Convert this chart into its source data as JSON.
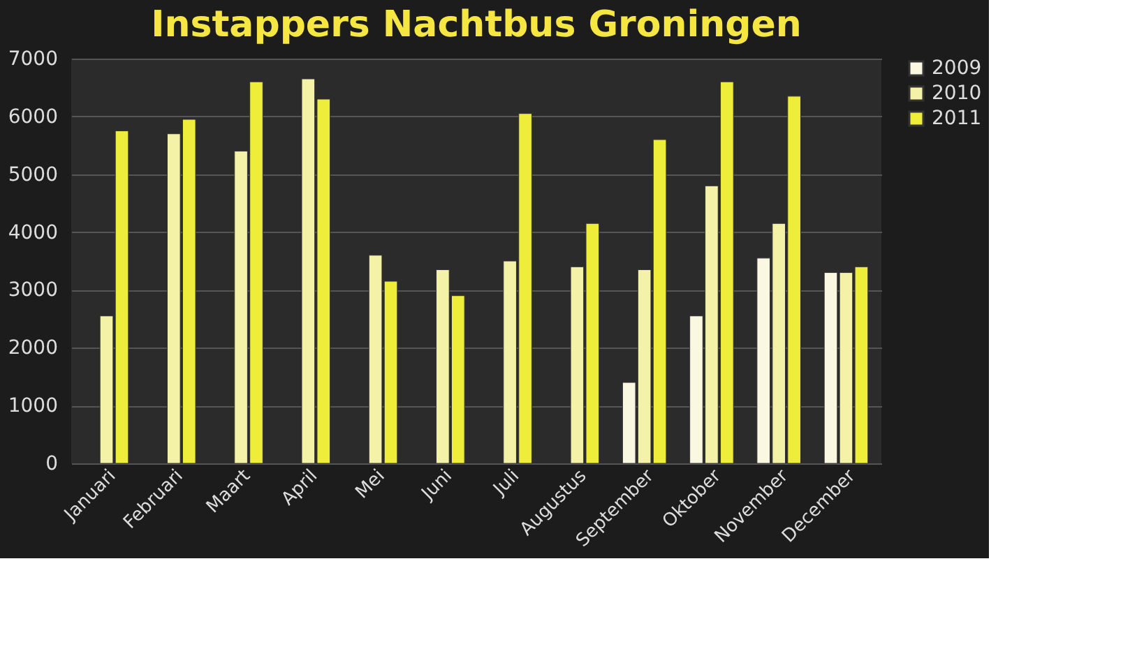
{
  "chart_data": {
    "type": "bar",
    "title": "Instappers Nachtbus Groningen",
    "categories": [
      "Januari",
      "Februari",
      "Maart",
      "April",
      "Mei",
      "Juni",
      "Juli",
      "Augustus",
      "September",
      "Oktober",
      "November",
      "December"
    ],
    "series": [
      {
        "name": "2009",
        "color": "#fbf8e2",
        "values": [
          null,
          null,
          null,
          null,
          null,
          null,
          null,
          null,
          1400,
          2550,
          3550,
          3300
        ]
      },
      {
        "name": "2010",
        "color": "#f4f2a6",
        "values": [
          2550,
          5700,
          5400,
          6650,
          3600,
          3350,
          3500,
          3400,
          3350,
          4800,
          4150,
          3300
        ]
      },
      {
        "name": "2011",
        "color": "#eeee3a",
        "values": [
          5750,
          5950,
          6600,
          6300,
          3150,
          2900,
          6050,
          4150,
          5600,
          6600,
          6350,
          3400
        ]
      }
    ],
    "ylim": [
      0,
      7000
    ],
    "yticks": [
      0,
      1000,
      2000,
      3000,
      4000,
      5000,
      6000,
      7000
    ],
    "grid": "y",
    "legend": "right"
  }
}
